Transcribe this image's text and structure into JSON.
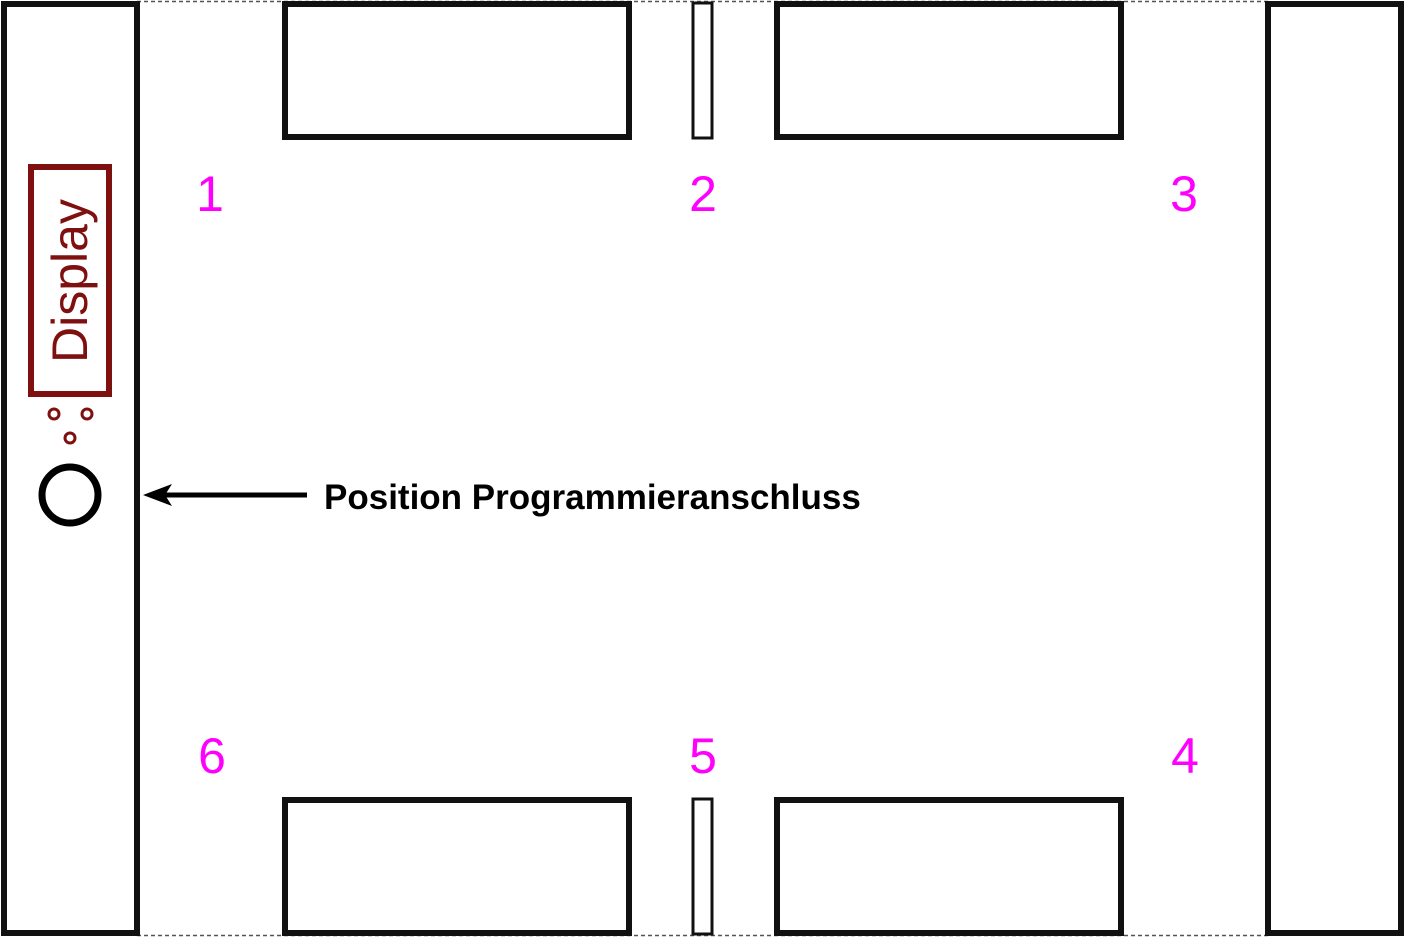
{
  "display": {
    "label": "Display"
  },
  "annotation": {
    "text": "Position Programmieranschluss"
  },
  "positions": {
    "p1": "1",
    "p2": "2",
    "p3": "3",
    "p4": "4",
    "p5": "5",
    "p6": "6"
  },
  "colors": {
    "outline": "#111111",
    "display": "#7f1010",
    "position_numbers": "#ff00ff",
    "dashed_border": "#555555",
    "background": "#ffffff"
  },
  "icons": {
    "port": "circle-icon",
    "indicator": "small-circles-icon",
    "arrow": "arrow-left-icon"
  }
}
